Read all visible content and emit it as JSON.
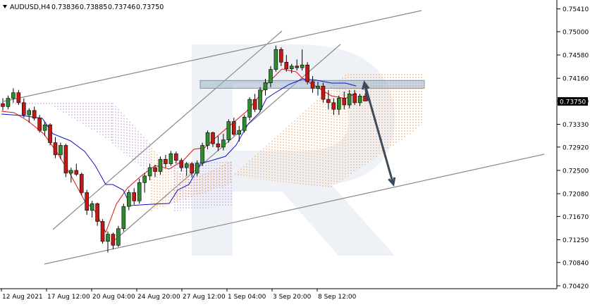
{
  "header": {
    "symbol": "AUDUSD,H4",
    "open": "0.73836",
    "high": "0.73885",
    "low": "0.73746",
    "close": "0.73750"
  },
  "colors": {
    "bull_candle": "#2e8b2e",
    "bear_candle": "#c21818",
    "tenkan": "#e01010",
    "kijun": "#1010c8",
    "cloud_orange": "#f4a15a",
    "cloud_purple": "#b89ad6",
    "channel": "#8a8a8a",
    "forecast_arrow": "#3d4a57",
    "resistance_zone": "#9fb2c8"
  },
  "chart_data": {
    "type": "candlestick",
    "symbol": "AUDUSD",
    "timeframe": "H4",
    "current_price": "0.73750",
    "ylim": [
      0.7035,
      0.7552
    ],
    "y_ticks": [
      "0.75410",
      "0.75000",
      "0.74580",
      "0.74160",
      "0.73750",
      "0.73330",
      "0.72920",
      "0.72500",
      "0.72080",
      "0.71670",
      "0.71250",
      "0.70840",
      "0.70420"
    ],
    "x_ticks": [
      "12 Aug 2021",
      "17 Aug 12:00",
      "20 Aug 04:00",
      "24 Aug 20:00",
      "27 Aug 12:00",
      "1 Sep 04:00",
      "3 Sep 20:00",
      "8 Sep 12:00"
    ],
    "candles": [
      [
        0.737,
        0.738,
        0.7358,
        0.7365
      ],
      [
        0.7365,
        0.7385,
        0.736,
        0.738
      ],
      [
        0.738,
        0.7398,
        0.7372,
        0.739
      ],
      [
        0.739,
        0.7395,
        0.7368,
        0.7372
      ],
      [
        0.7372,
        0.738,
        0.7345,
        0.735
      ],
      [
        0.735,
        0.7362,
        0.7336,
        0.7358
      ],
      [
        0.7358,
        0.7365,
        0.734,
        0.7344
      ],
      [
        0.7344,
        0.735,
        0.7318,
        0.7322
      ],
      [
        0.7322,
        0.7338,
        0.7312,
        0.7332
      ],
      [
        0.7332,
        0.7335,
        0.7295,
        0.73
      ],
      [
        0.73,
        0.731,
        0.7272,
        0.7278
      ],
      [
        0.7278,
        0.73,
        0.727,
        0.7295
      ],
      [
        0.7295,
        0.7298,
        0.7238,
        0.7245
      ],
      [
        0.7245,
        0.7255,
        0.7228,
        0.725
      ],
      [
        0.725,
        0.7262,
        0.724,
        0.7243
      ],
      [
        0.7243,
        0.7246,
        0.7205,
        0.721
      ],
      [
        0.721,
        0.7215,
        0.717,
        0.7178
      ],
      [
        0.7178,
        0.7195,
        0.7165,
        0.719
      ],
      [
        0.719,
        0.7192,
        0.715,
        0.7158
      ],
      [
        0.7158,
        0.7162,
        0.7118,
        0.7122
      ],
      [
        0.7122,
        0.714,
        0.7102,
        0.7135
      ],
      [
        0.7135,
        0.7138,
        0.7108,
        0.7115
      ],
      [
        0.7115,
        0.715,
        0.7112,
        0.7145
      ],
      [
        0.7145,
        0.719,
        0.714,
        0.7185
      ],
      [
        0.7185,
        0.7215,
        0.7178,
        0.721
      ],
      [
        0.721,
        0.7218,
        0.7188,
        0.7195
      ],
      [
        0.7195,
        0.7235,
        0.719,
        0.7228
      ],
      [
        0.7228,
        0.7245,
        0.721,
        0.724
      ],
      [
        0.724,
        0.7262,
        0.7232,
        0.7255
      ],
      [
        0.7255,
        0.726,
        0.7238,
        0.7248
      ],
      [
        0.7248,
        0.7275,
        0.7242,
        0.727
      ],
      [
        0.727,
        0.7278,
        0.7255,
        0.7262
      ],
      [
        0.7262,
        0.7285,
        0.7258,
        0.728
      ],
      [
        0.728,
        0.7284,
        0.7262,
        0.7268
      ],
      [
        0.7268,
        0.7272,
        0.7248,
        0.7255
      ],
      [
        0.7255,
        0.7265,
        0.724,
        0.7262
      ],
      [
        0.7262,
        0.7265,
        0.7238,
        0.7245
      ],
      [
        0.7245,
        0.7268,
        0.724,
        0.7263
      ],
      [
        0.7263,
        0.73,
        0.7258,
        0.7295
      ],
      [
        0.7295,
        0.7322,
        0.7288,
        0.7318
      ],
      [
        0.7318,
        0.732,
        0.7292,
        0.7298
      ],
      [
        0.7298,
        0.7312,
        0.7285,
        0.7292
      ],
      [
        0.7292,
        0.7316,
        0.7286,
        0.7305
      ],
      [
        0.7305,
        0.7342,
        0.73,
        0.7338
      ],
      [
        0.7338,
        0.7345,
        0.7312,
        0.7315
      ],
      [
        0.7315,
        0.733,
        0.7302,
        0.7322
      ],
      [
        0.7322,
        0.735,
        0.7318,
        0.7346
      ],
      [
        0.7346,
        0.7382,
        0.734,
        0.7378
      ],
      [
        0.7378,
        0.7388,
        0.7355,
        0.736
      ],
      [
        0.736,
        0.74,
        0.7355,
        0.7395
      ],
      [
        0.7395,
        0.7415,
        0.7385,
        0.7408
      ],
      [
        0.7408,
        0.7438,
        0.74,
        0.7432
      ],
      [
        0.7432,
        0.7475,
        0.7428,
        0.7468
      ],
      [
        0.7468,
        0.7472,
        0.7438,
        0.7445
      ],
      [
        0.7445,
        0.7458,
        0.7428,
        0.7433
      ],
      [
        0.7433,
        0.7442,
        0.7425,
        0.7438
      ],
      [
        0.7438,
        0.745,
        0.743,
        0.7435
      ],
      [
        0.7435,
        0.7468,
        0.743,
        0.744
      ],
      [
        0.744,
        0.7445,
        0.7405,
        0.741
      ],
      [
        0.741,
        0.742,
        0.739,
        0.7398
      ],
      [
        0.7398,
        0.741,
        0.7385,
        0.7402
      ],
      [
        0.7402,
        0.7408,
        0.7372,
        0.7378
      ],
      [
        0.7378,
        0.7395,
        0.736,
        0.7372
      ],
      [
        0.7372,
        0.738,
        0.735,
        0.736
      ],
      [
        0.736,
        0.7385,
        0.735,
        0.738
      ],
      [
        0.738,
        0.7392,
        0.736,
        0.7368
      ],
      [
        0.7368,
        0.7395,
        0.7362,
        0.7388
      ],
      [
        0.7388,
        0.7395,
        0.7368,
        0.7372
      ],
      [
        0.7372,
        0.7388,
        0.7366,
        0.7384
      ],
      [
        0.7384,
        0.7389,
        0.7375,
        0.7375
      ]
    ],
    "annotations": {
      "resistance_zone": {
        "from": 0.7398,
        "to": 0.7412
      },
      "forecast": [
        0.7408,
        0.7225
      ]
    }
  }
}
